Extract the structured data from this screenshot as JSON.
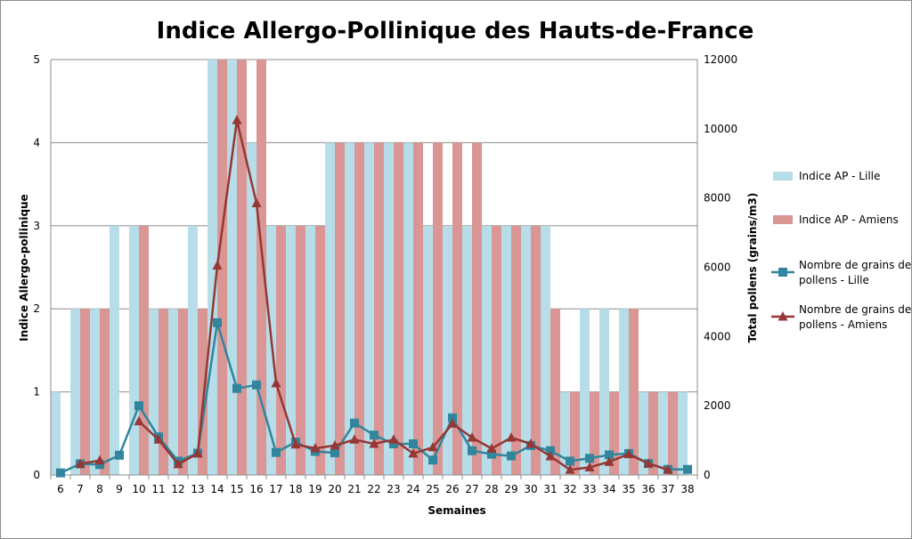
{
  "chart_data": {
    "type": "bar",
    "title": "Indice Allergo-Pollinique des Hauts-de-France",
    "xlabel": "Semaines",
    "ylabel": "Indice Allergo-pollinique",
    "y2label": "Total pollens (grains/m3)",
    "ylim": [
      0,
      5
    ],
    "y2lim": [
      0,
      12000
    ],
    "yticks": [
      "0",
      "1",
      "2",
      "3",
      "4",
      "5"
    ],
    "y2ticks": [
      "0",
      "2000",
      "4000",
      "6000",
      "8000",
      "10000",
      "12000"
    ],
    "grid": true,
    "legend_position": "right",
    "categories": [
      "6",
      "7",
      "8",
      "9",
      "10",
      "11",
      "12",
      "13",
      "14",
      "15",
      "16",
      "17",
      "18",
      "19",
      "20",
      "21",
      "22",
      "23",
      "24",
      "25",
      "26",
      "27",
      "28",
      "29",
      "30",
      "31",
      "32",
      "33",
      "34",
      "35",
      "36",
      "37",
      "38"
    ],
    "series": [
      {
        "name": "Indice AP - Lille",
        "type": "bar",
        "axis": "left",
        "color": "#b7dde8",
        "values": [
          1,
          2,
          2,
          3,
          3,
          2,
          2,
          3,
          5,
          5,
          4,
          3,
          3,
          3,
          4,
          4,
          4,
          4,
          4,
          3,
          3,
          3,
          3,
          3,
          3,
          3,
          1,
          2,
          2,
          2,
          1,
          1,
          1
        ]
      },
      {
        "name": "Indice AP - Amiens",
        "type": "bar",
        "axis": "left",
        "color": "#d99694",
        "values": [
          0,
          2,
          2,
          0,
          3,
          2,
          2,
          2,
          5,
          5,
          5,
          3,
          3,
          3,
          4,
          4,
          4,
          4,
          4,
          4,
          4,
          4,
          3,
          3,
          3,
          2,
          1,
          1,
          1,
          2,
          1,
          1,
          0
        ]
      },
      {
        "name": "Nombre de grains de pollens - Lille",
        "type": "line",
        "axis": "right",
        "color": "#31859c",
        "marker": "square",
        "values": [
          60,
          320,
          300,
          570,
          2000,
          1100,
          400,
          630,
          4400,
          2500,
          2600,
          650,
          950,
          680,
          640,
          1500,
          1150,
          900,
          900,
          430,
          1650,
          700,
          600,
          550,
          850,
          700,
          400,
          480,
          580,
          620,
          330,
          160,
          160
        ]
      },
      {
        "name": "Nombre de grains de pollens - Amiens",
        "type": "line",
        "axis": "right",
        "color": "#953735",
        "marker": "triangle",
        "values": [
          null,
          320,
          420,
          null,
          1550,
          1020,
          310,
          620,
          6050,
          10250,
          7850,
          2650,
          880,
          770,
          850,
          1020,
          900,
          1020,
          620,
          800,
          1480,
          1080,
          760,
          1080,
          900,
          540,
          150,
          220,
          380,
          600,
          330,
          150,
          null
        ]
      }
    ]
  }
}
